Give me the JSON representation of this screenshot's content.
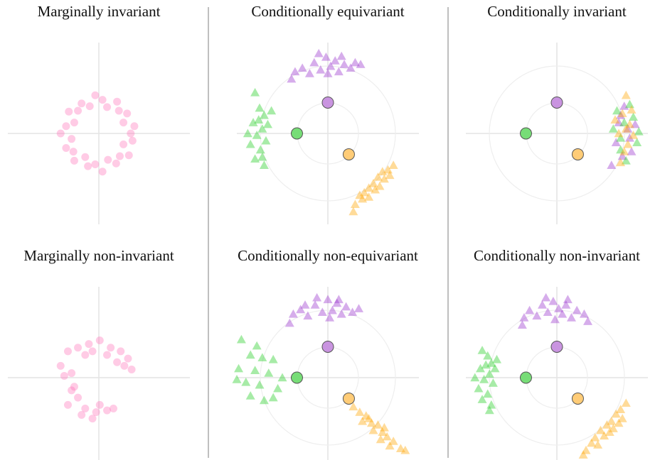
{
  "chart_data": [
    {
      "type": "scatter",
      "title": "Marginally invariant",
      "xlim": [
        -1,
        1
      ],
      "ylim": [
        -1,
        1
      ],
      "rings": false,
      "series": [
        {
          "color": "#ff69b4",
          "marker": "circle",
          "x": [
            0.35,
            0.39,
            0.27,
            0.31,
            0.22,
            0.2,
            0.09,
            0.04,
            -0.04,
            -0.1,
            -0.19,
            -0.23,
            -0.33,
            -0.27,
            -0.36,
            -0.42,
            -0.3,
            -0.36,
            -0.28,
            -0.27,
            -0.15,
            -0.12,
            -0.04,
            0.04,
            0.1,
            0.19,
            0.23,
            0.33,
            0.27,
            0.37
          ],
          "values": [
            0,
            0.08,
            0.12,
            0.22,
            0.25,
            0.35,
            0.29,
            0.37,
            0.42,
            0.3,
            0.33,
            0.25,
            0.24,
            0.12,
            0.08,
            0,
            -0.06,
            -0.16,
            -0.2,
            -0.3,
            -0.26,
            -0.36,
            -0.34,
            -0.42,
            -0.29,
            -0.33,
            -0.25,
            -0.24,
            -0.12,
            -0.08
          ]
        }
      ]
    },
    {
      "type": "scatter",
      "title": "Conditionally equivariant",
      "xlim": [
        -1,
        1
      ],
      "ylim": [
        -1,
        1
      ],
      "rings": true,
      "series": [
        {
          "color": "#9933cc",
          "marker": "triangle",
          "x": [
            -0.36,
            -0.28,
            -0.2,
            -0.15,
            -0.08,
            -0.02,
            0.03,
            0.08,
            0.12,
            0.18,
            0.25,
            0.3,
            -0.1,
            0,
            0.36,
            -0.4,
            0.15
          ],
          "values": [
            0.68,
            0.72,
            0.66,
            0.78,
            0.7,
            0.84,
            0.74,
            0.8,
            0.68,
            0.76,
            0.72,
            0.78,
            0.88,
            0.66,
            0.76,
            0.6,
            0.85
          ]
        },
        {
          "color": "#22cc22",
          "marker": "triangle",
          "x": [
            -0.8,
            -0.75,
            -0.7,
            -0.82,
            -0.72,
            -0.78,
            -0.68,
            -0.85,
            -0.74,
            -0.66,
            -0.8,
            -0.7,
            -0.62,
            -0.88,
            -0.76,
            -0.72
          ],
          "values": [
            0.45,
            0.28,
            0.2,
            0.12,
            0.05,
            -0.02,
            -0.08,
            -0.12,
            -0.18,
            0.1,
            -0.28,
            -0.35,
            0.25,
            0,
            0.15,
            -0.26
          ]
        },
        {
          "color": "#ffa500",
          "marker": "triangle",
          "x": [
            0.72,
            0.66,
            0.6,
            0.62,
            0.55,
            0.5,
            0.45,
            0.52,
            0.4,
            0.38,
            0.45,
            0.3,
            0.28,
            0.57,
            0.68,
            0.35
          ],
          "values": [
            -0.35,
            -0.4,
            -0.42,
            -0.5,
            -0.48,
            -0.55,
            -0.6,
            -0.62,
            -0.65,
            -0.72,
            -0.7,
            -0.78,
            -0.86,
            -0.58,
            -0.46,
            -0.68
          ]
        },
        {
          "color": "#c994e0",
          "marker": "anchor",
          "x": [
            0
          ],
          "values": [
            0.34
          ]
        },
        {
          "color": "#77dd77",
          "marker": "anchor",
          "x": [
            -0.34
          ],
          "values": [
            0
          ]
        },
        {
          "color": "#ffcc77",
          "marker": "anchor",
          "x": [
            0.23
          ],
          "values": [
            -0.23
          ]
        }
      ]
    },
    {
      "type": "scatter",
      "title": "Conditionally invariant",
      "xlim": [
        -1,
        1
      ],
      "ylim": [
        -1,
        1
      ],
      "rings": true,
      "series": [
        {
          "color": "#9933cc",
          "marker": "triangle",
          "x": [
            0.7,
            0.78,
            0.65,
            0.82,
            0.74,
            0.6,
            0.86,
            0.72,
            0.8,
            0.68
          ],
          "values": [
            0.2,
            0.05,
            -0.1,
            -0.2,
            0.3,
            -0.35,
            0.1,
            -0.25,
            -0.05,
            0.12
          ]
        },
        {
          "color": "#22cc22",
          "marker": "triangle",
          "x": [
            0.66,
            0.84,
            0.7,
            0.88,
            0.62,
            0.76,
            0.8,
            0.7,
            0.9,
            0.74
          ],
          "values": [
            0.25,
            0.18,
            -0.05,
            -0.1,
            0.05,
            -0.3,
            0.32,
            -0.18,
            0.02,
            0.12
          ]
        },
        {
          "color": "#ffa500",
          "marker": "triangle",
          "x": [
            0.76,
            0.72,
            0.8,
            0.68,
            0.78,
            0.84,
            0.74,
            0.64,
            0.82,
            0.76,
            0.7
          ],
          "values": [
            0.42,
            0.22,
            0.1,
            0,
            -0.12,
            -0.02,
            -0.2,
            0.15,
            0.26,
            0.05,
            -0.32
          ]
        },
        {
          "color": "#c994e0",
          "marker": "anchor",
          "x": [
            0
          ],
          "values": [
            0.34
          ]
        },
        {
          "color": "#77dd77",
          "marker": "anchor",
          "x": [
            -0.34
          ],
          "values": [
            0
          ]
        },
        {
          "color": "#ffcc77",
          "marker": "anchor",
          "x": [
            0.23
          ],
          "values": [
            -0.23
          ]
        }
      ]
    },
    {
      "type": "scatter",
      "title": "Marginally non-invariant",
      "xlim": [
        -1,
        1
      ],
      "ylim": [
        -1,
        1
      ],
      "rings": false,
      "series": [
        {
          "color": "#ff69b4",
          "marker": "circle",
          "x": [
            -0.42,
            -0.34,
            -0.23,
            -0.11,
            0.01,
            0.13,
            0.24,
            0.32,
            0.36,
            0.28,
            -0.3,
            -0.15,
            0.09,
            0.2,
            -0.3,
            -0.23,
            -0.34,
            -0.15,
            -0.03,
            0.09,
            0.16,
            -0.07,
            -0.27,
            0.01,
            -0.19,
            -0.38,
            -0.07
          ],
          "values": [
            0.13,
            0.29,
            0.33,
            0.37,
            0.41,
            0.33,
            0.29,
            0.21,
            0.09,
            0.13,
            0.05,
            0.25,
            0.25,
            0.17,
            -0.14,
            -0.22,
            -0.3,
            -0.34,
            -0.38,
            -0.36,
            -0.34,
            -0.45,
            -0.1,
            -0.3,
            -0.41,
            0.02,
            0.29
          ]
        }
      ]
    },
    {
      "type": "scatter",
      "title": "Conditionally non-equivariant",
      "xlim": [
        -1,
        1
      ],
      "ylim": [
        -1,
        1
      ],
      "rings": true,
      "series": [
        {
          "color": "#9933cc",
          "marker": "triangle",
          "x": [
            -0.38,
            -0.3,
            -0.22,
            -0.14,
            -0.06,
            0,
            0.05,
            0.1,
            0.15,
            0.2,
            0.27,
            0.34,
            -0.12,
            0.02,
            -0.42,
            0.12,
            -0.25
          ],
          "values": [
            0.7,
            0.75,
            0.68,
            0.8,
            0.72,
            0.86,
            0.74,
            0.82,
            0.7,
            0.78,
            0.72,
            0.76,
            0.88,
            0.66,
            0.6,
            0.86,
            0.8
          ]
        },
        {
          "color": "#22cc22",
          "marker": "triangle",
          "x": [
            -0.95,
            -0.85,
            -0.72,
            -0.6,
            -0.98,
            -0.8,
            -0.65,
            -0.9,
            -0.75,
            -0.55,
            -0.85,
            -0.7,
            -1,
            -0.6,
            -0.78,
            -0.5
          ],
          "values": [
            0.42,
            0.25,
            0.22,
            0.2,
            0.1,
            0.08,
            0.05,
            -0.05,
            -0.08,
            -0.12,
            -0.2,
            -0.25,
            -0.02,
            -0.22,
            0.35,
            0
          ]
        },
        {
          "color": "#ffa500",
          "marker": "triangle",
          "x": [
            0.28,
            0.35,
            0.42,
            0.38,
            0.48,
            0.55,
            0.5,
            0.6,
            0.65,
            0.58,
            0.72,
            0.68,
            0.8,
            0.85,
            0.45,
            0.62
          ],
          "values": [
            -0.32,
            -0.38,
            -0.42,
            -0.48,
            -0.5,
            -0.52,
            -0.58,
            -0.6,
            -0.65,
            -0.68,
            -0.7,
            -0.75,
            -0.78,
            -0.8,
            -0.45,
            -0.55
          ]
        },
        {
          "color": "#c994e0",
          "marker": "anchor",
          "x": [
            0
          ],
          "values": [
            0.34
          ]
        },
        {
          "color": "#77dd77",
          "marker": "anchor",
          "x": [
            -0.34
          ],
          "values": [
            0
          ]
        },
        {
          "color": "#ffcc77",
          "marker": "anchor",
          "x": [
            0.23
          ],
          "values": [
            -0.23
          ]
        }
      ]
    },
    {
      "type": "scatter",
      "title": "Conditionally non-invariant",
      "xlim": [
        -1,
        1
      ],
      "ylim": [
        -1,
        1
      ],
      "rings": true,
      "series": [
        {
          "color": "#9933cc",
          "marker": "triangle",
          "x": [
            -0.36,
            -0.3,
            -0.22,
            -0.16,
            -0.1,
            -0.04,
            0.02,
            0.06,
            0.1,
            0.16,
            0.22,
            0.3,
            -0.12,
            -0.02,
            0.34,
            -0.38,
            0.12
          ],
          "values": [
            0.66,
            0.74,
            0.68,
            0.8,
            0.72,
            0.84,
            0.76,
            0.7,
            0.8,
            0.66,
            0.74,
            0.7,
            0.88,
            0.64,
            0.62,
            0.58,
            0.86
          ]
        },
        {
          "color": "#22cc22",
          "marker": "triangle",
          "x": [
            -0.82,
            -0.76,
            -0.72,
            -0.84,
            -0.74,
            -0.8,
            -0.7,
            -0.86,
            -0.76,
            -0.68,
            -0.82,
            -0.72,
            -0.66,
            -0.9,
            -0.78,
            -0.74
          ],
          "values": [
            0.3,
            0.24,
            0.16,
            0.1,
            0.04,
            -0.02,
            -0.06,
            -0.12,
            -0.18,
            0.1,
            -0.24,
            -0.3,
            0.2,
            0,
            0.14,
            -0.36
          ]
        },
        {
          "color": "#ffa500",
          "marker": "triangle",
          "x": [
            0.76,
            0.7,
            0.65,
            0.72,
            0.6,
            0.55,
            0.62,
            0.48,
            0.52,
            0.42,
            0.38,
            0.45,
            0.32,
            0.29,
            0.58,
            0.68
          ],
          "values": [
            -0.28,
            -0.35,
            -0.4,
            -0.45,
            -0.48,
            -0.52,
            -0.56,
            -0.58,
            -0.64,
            -0.66,
            -0.72,
            -0.74,
            -0.8,
            -0.85,
            -0.6,
            -0.5
          ]
        },
        {
          "color": "#c994e0",
          "marker": "anchor",
          "x": [
            0
          ],
          "values": [
            0.34
          ]
        },
        {
          "color": "#77dd77",
          "marker": "anchor",
          "x": [
            -0.34
          ],
          "values": [
            0
          ]
        },
        {
          "color": "#ffcc77",
          "marker": "anchor",
          "x": [
            0.23
          ],
          "values": [
            -0.23
          ]
        }
      ]
    }
  ]
}
